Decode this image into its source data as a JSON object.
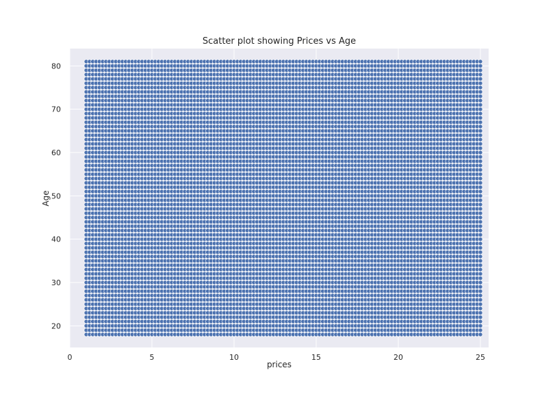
{
  "chart_data": {
    "type": "scatter",
    "title": "Scatter plot showing Prices vs Age",
    "xlabel": "prices",
    "ylabel": "Age",
    "xlim": [
      0,
      25.5
    ],
    "ylim": [
      15,
      84
    ],
    "xticks": [
      0,
      5,
      10,
      15,
      20,
      25
    ],
    "yticks": [
      20,
      30,
      40,
      50,
      60,
      70,
      80
    ],
    "xtick_labels": [
      "0",
      "5",
      "10",
      "15",
      "20",
      "25"
    ],
    "ytick_labels": [
      "20",
      "30",
      "40",
      "50",
      "60",
      "70",
      "80"
    ],
    "grid": true,
    "point_distribution": {
      "x_values": {
        "start": 1,
        "end": 25,
        "step": 0.2
      },
      "y_values": {
        "start": 18,
        "end": 81,
        "step": 1
      }
    },
    "colors": {
      "background": "#eaeaf2",
      "grid": "#ffffff",
      "marker": "#4c72b0",
      "marker_edge": "#ffffff"
    }
  }
}
